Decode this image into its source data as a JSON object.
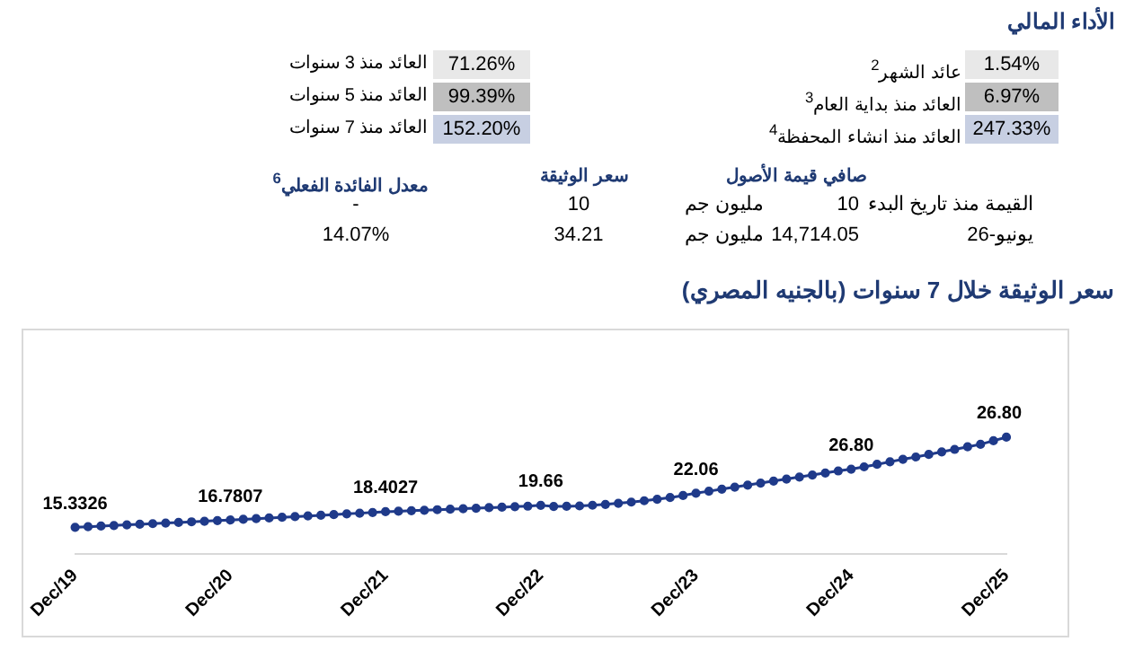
{
  "chart_data": [
    {
      "type": "other",
      "title": "الأداء المالي",
      "annotations": [
        "عائد الشهر$^{2}$",
        "1.54%",
        "العائد منذ 3 سنوات",
        "71.26%",
        "العائد منذ بداية العام$^{3}$",
        "6.97%",
        "العائد منذ 5 سنوات",
        "99.39%",
        "العائد منذ انشاء المحفظة$^{4}$",
        "247.33%",
        "العائد منذ 7 سنوات",
        "152.20%",
        "صافي قيمة الأصول",
        "سعر الوثيقة",
        "معدل الفائدة الفعلي$^{6}$",
        "القيمة منذ تاريخ البدء",
        "10",
        "مليون جم",
        "10",
        "-",
        "يونيو-26",
        "14,714.05",
        "مليون جم",
        "34.21",
        "14.07%"
      ]
    },
    {
      "type": "line",
      "title": "سعر الوثيقة خلال 7 سنوات (بالجنيه المصري)",
      "categories": [
        "Dec/19",
        null,
        null,
        null,
        null,
        null,
        null,
        null,
        null,
        null,
        null,
        null,
        "Dec/20",
        null,
        null,
        null,
        null,
        null,
        null,
        null,
        null,
        null,
        null,
        null,
        "Dec/21",
        null,
        null,
        null,
        null,
        null,
        null,
        null,
        null,
        null,
        null,
        null,
        "Dec/22",
        null,
        null,
        null,
        null,
        null,
        null,
        null,
        null,
        null,
        null,
        null,
        "Dec/23",
        null,
        null,
        null,
        null,
        null,
        null,
        null,
        null,
        null,
        null,
        null,
        "Dec/24",
        null,
        null,
        null,
        null,
        null,
        null,
        null,
        null,
        null,
        null,
        null,
        "Dec/25"
      ],
      "series": [
        {
          "color": "#1f3a8a",
          "values": [
            15.3326,
            15.45,
            15.57,
            15.69,
            15.81,
            15.93,
            16.05,
            16.17,
            16.29,
            16.41,
            16.53,
            16.66,
            16.7807,
            16.9,
            17.03,
            17.17,
            17.3,
            17.44,
            17.57,
            17.71,
            17.84,
            17.98,
            18.11,
            18.25,
            18.4027,
            18.5,
            18.6,
            18.7,
            18.8,
            18.9,
            19.0,
            19.1,
            19.2,
            19.3,
            19.4,
            19.5,
            19.66,
            19.45,
            19.48,
            19.55,
            19.68,
            19.85,
            20.06,
            20.3,
            20.57,
            20.87,
            21.2,
            21.6,
            22.06,
            22.45,
            22.85,
            23.25,
            23.65,
            24.05,
            24.45,
            24.85,
            25.25,
            25.65,
            26.05,
            26.45,
            26.8,
            27.25,
            27.75,
            28.25,
            28.75,
            29.2,
            29.7,
            30.2,
            30.7,
            31.2,
            31.7,
            32.4,
            33.1
          ],
          "value_labels": [
            "15.3326",
            null,
            null,
            null,
            null,
            null,
            null,
            null,
            null,
            null,
            null,
            null,
            "16.7807",
            null,
            null,
            null,
            null,
            null,
            null,
            null,
            null,
            null,
            null,
            null,
            "18.4027",
            null,
            null,
            null,
            null,
            null,
            null,
            null,
            null,
            null,
            null,
            null,
            "19.66",
            null,
            null,
            null,
            null,
            null,
            null,
            null,
            null,
            null,
            null,
            null,
            "22.06",
            null,
            null,
            null,
            null,
            null,
            null,
            null,
            null,
            null,
            null,
            null,
            "26.80",
            null,
            null,
            null,
            null,
            null,
            null,
            null,
            null,
            null,
            null,
            null,
            null
          ]
        }
      ],
      "annotations": [
        "26.80"
      ],
      "marker": "circle",
      "line_style": "solid",
      "legend": false,
      "grid": false
    }
  ]
}
